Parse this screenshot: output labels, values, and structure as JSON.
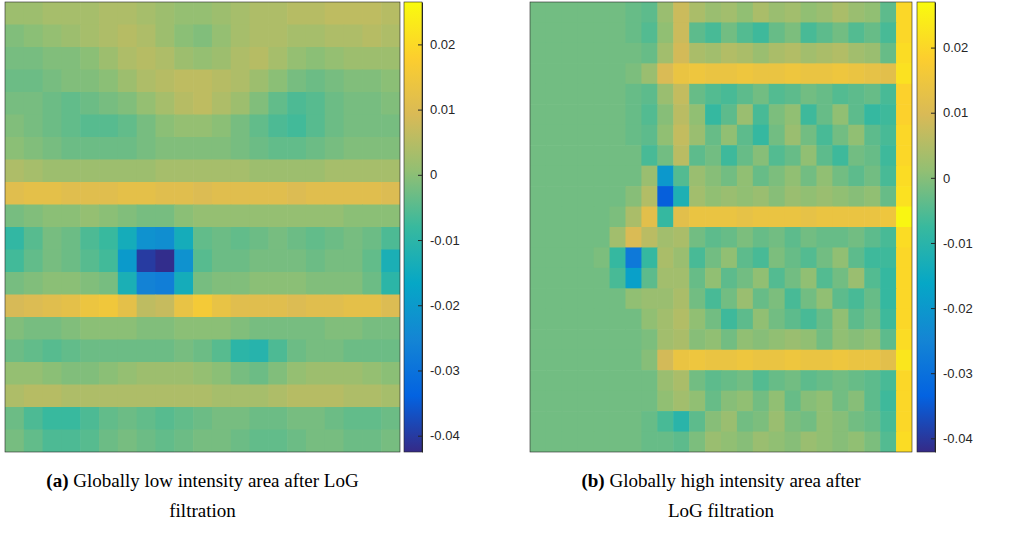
{
  "chart_data": [
    {
      "type": "heatmap",
      "label": "(a)",
      "title": "Globally low intensity area after LoG filtration",
      "colorbar": {
        "range": [
          -0.0425,
          0.0265
        ],
        "ticks": [
          -0.04,
          -0.03,
          -0.02,
          -0.01,
          0,
          0.01,
          0.02
        ]
      },
      "cells": [
        [
          0.002,
          0.002,
          0.003,
          0.003,
          0.003,
          0.004,
          0.004,
          0.003,
          0.002,
          0.001,
          0.001,
          0.002,
          0.003,
          0.004,
          0.004,
          0.005,
          0.005,
          0.006,
          0.006,
          0.006,
          0.005
        ],
        [
          -0.001,
          0,
          0.001,
          0.002,
          0.003,
          0.004,
          0.005,
          0.004,
          0.002,
          0,
          -0.001,
          0.001,
          0.003,
          0.004,
          0.004,
          0.003,
          0.003,
          0.004,
          0.004,
          0.005,
          0.004
        ],
        [
          -0.002,
          -0.002,
          -0.001,
          -0.001,
          0,
          0.002,
          0.004,
          0.005,
          0.004,
          0.002,
          0.001,
          0.002,
          0.004,
          0.005,
          0.003,
          0.001,
          0,
          0.001,
          0.002,
          0.002,
          0.002
        ],
        [
          -0.003,
          -0.003,
          -0.002,
          -0.001,
          -0.001,
          0,
          0.002,
          0.004,
          0.005,
          0.006,
          0.006,
          0.005,
          0.004,
          0.002,
          0,
          -0.002,
          -0.003,
          -0.002,
          -0.001,
          -0.001,
          0
        ],
        [
          -0.002,
          -0.002,
          -0.003,
          -0.004,
          -0.003,
          -0.002,
          -0.001,
          0.001,
          0.003,
          0.005,
          0.006,
          0.004,
          0.002,
          -0.001,
          -0.004,
          -0.006,
          -0.005,
          -0.003,
          -0.002,
          -0.002,
          -0.001
        ],
        [
          -0.001,
          -0.002,
          -0.003,
          -0.004,
          -0.005,
          -0.005,
          -0.004,
          -0.002,
          0,
          0.001,
          0.001,
          0,
          -0.002,
          -0.004,
          -0.006,
          -0.007,
          -0.005,
          -0.003,
          -0.002,
          -0.002,
          -0.002
        ],
        [
          0,
          -0.001,
          -0.002,
          -0.003,
          -0.003,
          -0.003,
          -0.003,
          -0.002,
          -0.001,
          -0.001,
          -0.001,
          -0.001,
          -0.002,
          -0.003,
          -0.004,
          -0.004,
          -0.003,
          -0.002,
          -0.001,
          -0.001,
          -0.001
        ],
        [
          0.004,
          0.003,
          0.002,
          0.002,
          0.002,
          0.002,
          0.002,
          0.002,
          0.003,
          0.003,
          0.003,
          0.003,
          0.003,
          0.002,
          0.002,
          0.002,
          0.002,
          0.003,
          0.003,
          0.003,
          0.003
        ],
        [
          0.011,
          0.012,
          0.012,
          0.011,
          0.011,
          0.011,
          0.012,
          0.012,
          0.011,
          0.011,
          0.01,
          0.011,
          0.011,
          0.011,
          0.011,
          0.01,
          0.011,
          0.011,
          0.011,
          0.011,
          0.01
        ],
        [
          -0.002,
          -0.001,
          0,
          0,
          0.001,
          0,
          -0.001,
          -0.002,
          -0.002,
          0,
          0.001,
          0.001,
          0.001,
          0.001,
          0.001,
          0.001,
          0.001,
          0.001,
          0,
          0,
          0
        ],
        [
          -0.009,
          -0.005,
          -0.002,
          -0.003,
          -0.006,
          -0.008,
          -0.014,
          -0.022,
          -0.023,
          -0.014,
          -0.004,
          -0.003,
          -0.004,
          -0.003,
          -0.002,
          -0.003,
          -0.004,
          -0.003,
          -0.002,
          -0.003,
          -0.006
        ],
        [
          -0.007,
          -0.004,
          -0.002,
          -0.003,
          -0.005,
          -0.007,
          -0.02,
          -0.04,
          -0.042,
          -0.022,
          -0.005,
          -0.003,
          -0.003,
          -0.002,
          -0.002,
          -0.002,
          -0.003,
          -0.002,
          -0.002,
          -0.004,
          -0.013
        ],
        [
          -0.002,
          -0.001,
          0,
          0,
          -0.001,
          -0.002,
          -0.013,
          -0.026,
          -0.027,
          -0.014,
          -0.002,
          -0.001,
          -0.001,
          0,
          0,
          0,
          -0.001,
          -0.001,
          -0.001,
          -0.003,
          -0.01
        ],
        [
          0.009,
          0.01,
          0.011,
          0.012,
          0.014,
          0.015,
          0.012,
          0.006,
          0.007,
          0.013,
          0.016,
          0.013,
          0.011,
          0.011,
          0.011,
          0.01,
          0.011,
          0.011,
          0.012,
          0.012,
          0.01
        ],
        [
          -0.001,
          -0.002,
          -0.002,
          -0.001,
          0,
          0,
          0,
          -0.001,
          -0.001,
          0,
          0,
          0,
          -0.001,
          -0.002,
          -0.002,
          -0.002,
          -0.002,
          -0.001,
          -0.001,
          -0.002,
          -0.002
        ],
        [
          -0.003,
          -0.004,
          -0.005,
          -0.004,
          -0.003,
          -0.003,
          -0.003,
          -0.003,
          -0.003,
          -0.002,
          -0.003,
          -0.005,
          -0.01,
          -0.011,
          -0.006,
          -0.003,
          -0.002,
          -0.002,
          -0.003,
          -0.003,
          -0.003
        ],
        [
          0.001,
          0.001,
          0,
          -0.001,
          -0.001,
          0,
          0.001,
          0.002,
          0.002,
          0.002,
          0.001,
          0,
          -0.002,
          -0.003,
          -0.001,
          0.001,
          0.002,
          0.002,
          0.002,
          0.001,
          0
        ],
        [
          0.004,
          0.005,
          0.005,
          0.004,
          0.004,
          0.004,
          0.004,
          0.004,
          0.004,
          0.004,
          0.004,
          0.003,
          0.003,
          0.003,
          0.004,
          0.005,
          0.005,
          0.005,
          0.004,
          0.004,
          0.003
        ],
        [
          -0.003,
          -0.006,
          -0.008,
          -0.008,
          -0.006,
          -0.004,
          -0.003,
          -0.004,
          -0.005,
          -0.004,
          -0.003,
          -0.002,
          -0.002,
          -0.003,
          -0.003,
          -0.002,
          -0.002,
          -0.003,
          -0.004,
          -0.004,
          -0.003
        ],
        [
          -0.002,
          -0.004,
          -0.006,
          -0.006,
          -0.005,
          -0.003,
          -0.002,
          -0.003,
          -0.004,
          -0.003,
          -0.002,
          -0.002,
          -0.003,
          -0.004,
          -0.004,
          -0.003,
          -0.002,
          -0.002,
          -0.003,
          -0.003,
          -0.002
        ]
      ]
    },
    {
      "type": "heatmap",
      "label": "(b)",
      "title": "Globally high intensity area after LoG filtration",
      "colorbar": {
        "range": [
          -0.0421,
          0.027
        ],
        "ticks": [
          -0.04,
          -0.03,
          -0.02,
          -0.01,
          0,
          0.01,
          0.02
        ]
      },
      "cells": [
        [
          -0.002,
          -0.002,
          -0.002,
          -0.002,
          -0.002,
          -0.002,
          -0.003,
          -0.004,
          0.002,
          0.008,
          0.004,
          0.002,
          0.003,
          0.001,
          0.004,
          0.002,
          0.003,
          0.001,
          0.002,
          0.004,
          0.002,
          0.001,
          -0.004,
          0.02
        ],
        [
          -0.002,
          -0.002,
          -0.002,
          -0.002,
          -0.002,
          -0.002,
          -0.003,
          -0.005,
          0.001,
          0.008,
          -0.004,
          -0.006,
          -0.002,
          -0.005,
          -0.007,
          -0.003,
          -0.001,
          -0.006,
          -0.004,
          -0.002,
          -0.005,
          -0.003,
          -0.006,
          0.02
        ],
        [
          -0.002,
          -0.002,
          -0.002,
          -0.002,
          -0.002,
          -0.002,
          -0.002,
          -0.003,
          0.003,
          0.009,
          0.004,
          0.003,
          0.005,
          0.004,
          0.002,
          0.004,
          0.005,
          0.003,
          0.004,
          0.005,
          0.003,
          0.002,
          -0.003,
          0.021
        ],
        [
          -0.002,
          -0.002,
          -0.002,
          -0.002,
          -0.002,
          -0.002,
          -0.001,
          0.002,
          0.01,
          0.014,
          0.015,
          0.014,
          0.014,
          0.015,
          0.014,
          0.014,
          0.015,
          0.014,
          0.014,
          0.015,
          0.014,
          0.013,
          0.012,
          0.022
        ],
        [
          -0.002,
          -0.002,
          -0.002,
          -0.002,
          -0.002,
          -0.002,
          -0.003,
          -0.004,
          0.002,
          0.007,
          -0.003,
          -0.005,
          -0.006,
          -0.004,
          -0.002,
          -0.005,
          -0.004,
          -0.002,
          -0.003,
          -0.005,
          -0.004,
          -0.003,
          -0.006,
          0.019
        ],
        [
          -0.002,
          -0.002,
          -0.002,
          -0.002,
          -0.002,
          -0.002,
          -0.003,
          -0.005,
          0,
          0.006,
          0.001,
          -0.008,
          -0.004,
          0.002,
          -0.006,
          -0.001,
          0.001,
          -0.007,
          -0.003,
          0.001,
          -0.004,
          -0.008,
          -0.007,
          0.019
        ],
        [
          -0.002,
          -0.002,
          -0.002,
          -0.002,
          -0.002,
          -0.002,
          -0.003,
          -0.004,
          0.001,
          0.007,
          0.002,
          -0.003,
          0.001,
          -0.004,
          -0.008,
          -0.002,
          0.002,
          -0.002,
          -0.006,
          -0.002,
          0.001,
          -0.004,
          -0.006,
          0.02
        ],
        [
          -0.002,
          -0.002,
          -0.002,
          -0.002,
          -0.002,
          -0.002,
          -0.002,
          -0.006,
          -0.002,
          0.006,
          -0.004,
          -0.002,
          -0.007,
          -0.003,
          0,
          -0.005,
          -0.003,
          0.001,
          -0.004,
          -0.007,
          -0.002,
          -0.003,
          -0.007,
          0.02
        ],
        [
          -0.002,
          -0.002,
          -0.002,
          -0.002,
          -0.002,
          -0.002,
          -0.002,
          0.002,
          -0.02,
          -0.005,
          0.002,
          0,
          -0.002,
          0.001,
          -0.003,
          -0.001,
          0.001,
          -0.002,
          0.001,
          -0.002,
          -0.004,
          -0.002,
          -0.006,
          0.021
        ],
        [
          -0.002,
          -0.002,
          -0.002,
          -0.002,
          -0.002,
          -0.002,
          0,
          0.005,
          -0.034,
          -0.012,
          0.003,
          0.001,
          0.002,
          0.001,
          0.002,
          0,
          0.002,
          0.001,
          0.002,
          0.001,
          0,
          0.001,
          -0.003,
          0.022
        ],
        [
          -0.002,
          -0.002,
          -0.002,
          -0.002,
          -0.002,
          -0.001,
          0.004,
          0.012,
          -0.008,
          0.012,
          0.014,
          0.014,
          0.014,
          0.013,
          0.014,
          0.014,
          0.014,
          0.013,
          0.014,
          0.014,
          0.014,
          0.014,
          0.015,
          0.026
        ],
        [
          -0.002,
          -0.002,
          -0.002,
          -0.002,
          -0.002,
          0.003,
          0.01,
          0.006,
          0.003,
          0.004,
          -0.002,
          -0.004,
          -0.003,
          -0.001,
          -0.003,
          -0.002,
          -0.004,
          -0.002,
          -0.003,
          -0.003,
          -0.002,
          -0.004,
          -0.006,
          0.021
        ],
        [
          -0.002,
          -0.002,
          -0.002,
          -0.002,
          -0.001,
          -0.008,
          -0.028,
          -0.008,
          0.004,
          0.002,
          -0.006,
          -0.002,
          0.001,
          -0.004,
          -0.006,
          -0.001,
          -0.003,
          -0.005,
          -0.002,
          0.001,
          -0.004,
          -0.007,
          -0.007,
          0.02
        ],
        [
          -0.002,
          -0.002,
          -0.002,
          -0.002,
          -0.002,
          -0.006,
          -0.018,
          -0.004,
          0.003,
          0.003,
          -0.003,
          0.001,
          -0.004,
          -0.002,
          0.001,
          -0.005,
          -0.002,
          0.001,
          -0.005,
          -0.002,
          0.002,
          -0.005,
          -0.008,
          0.02
        ],
        [
          -0.002,
          -0.002,
          -0.002,
          -0.002,
          -0.002,
          -0.002,
          0.001,
          0.002,
          0.002,
          0.004,
          -0.002,
          -0.006,
          -0.002,
          0.002,
          -0.003,
          -0.001,
          -0.006,
          -0.002,
          0.001,
          -0.004,
          -0.006,
          -0.003,
          -0.008,
          0.02
        ],
        [
          -0.002,
          -0.002,
          -0.002,
          -0.002,
          -0.002,
          -0.002,
          -0.002,
          0.001,
          0.003,
          0.005,
          0.001,
          -0.002,
          -0.007,
          -0.004,
          0.001,
          -0.002,
          -0.004,
          -0.006,
          -0.003,
          0.001,
          -0.004,
          -0.002,
          -0.007,
          0.02
        ],
        [
          -0.002,
          -0.002,
          -0.002,
          -0.002,
          -0.002,
          -0.002,
          -0.002,
          -0.001,
          0.003,
          0.004,
          0,
          0.001,
          -0.002,
          0.001,
          0,
          0.001,
          0.002,
          0.001,
          -0.002,
          0.001,
          0,
          0.001,
          -0.004,
          0.021
        ],
        [
          -0.002,
          -0.002,
          -0.002,
          -0.002,
          -0.002,
          -0.002,
          -0.002,
          0,
          0.009,
          0.014,
          0.015,
          0.014,
          0.014,
          0.015,
          0.014,
          0.014,
          0.015,
          0.014,
          0.014,
          0.015,
          0.014,
          0.014,
          0.012,
          0.023
        ],
        [
          -0.002,
          -0.002,
          -0.002,
          -0.002,
          -0.002,
          -0.002,
          -0.002,
          -0.002,
          0.002,
          0.004,
          -0.002,
          -0.004,
          -0.003,
          -0.002,
          -0.005,
          -0.003,
          -0.002,
          -0.004,
          -0.003,
          -0.002,
          -0.003,
          -0.004,
          -0.006,
          0.02
        ],
        [
          -0.002,
          -0.002,
          -0.002,
          -0.002,
          -0.002,
          -0.002,
          -0.002,
          -0.002,
          0.001,
          0.003,
          0.001,
          -0.003,
          0,
          0.001,
          -0.002,
          0.001,
          -0.003,
          0,
          0.001,
          -0.002,
          0,
          -0.004,
          -0.007,
          0.02
        ],
        [
          -0.002,
          -0.002,
          -0.002,
          -0.002,
          -0.002,
          -0.002,
          -0.002,
          -0.003,
          -0.006,
          -0.01,
          -0.004,
          0,
          0.002,
          -0.002,
          -0.001,
          0.002,
          -0.001,
          -0.002,
          0.001,
          0,
          -0.002,
          -0.003,
          -0.006,
          0.02
        ],
        [
          -0.002,
          -0.002,
          -0.002,
          -0.002,
          -0.002,
          -0.002,
          -0.002,
          -0.003,
          -0.003,
          -0.004,
          -0.001,
          0.002,
          0.001,
          0,
          0.002,
          0.001,
          0,
          0.002,
          0.001,
          0,
          0.001,
          -0.001,
          -0.005,
          0.021
        ]
      ]
    }
  ]
}
